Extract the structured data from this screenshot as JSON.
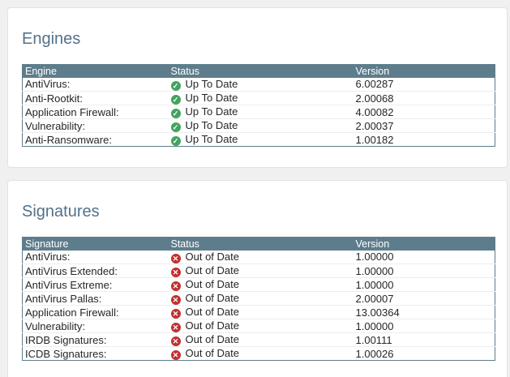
{
  "colors": {
    "page_bg": "#f0f0f1",
    "panel_bg": "#ffffff",
    "panel_border": "#e2e2e4",
    "title_text": "#53718a",
    "table_header_bg": "#5e7d8c",
    "table_header_text": "#ffffff",
    "table_border": "#5e7d8c",
    "row_divider": "#ededed",
    "body_text": "#262626",
    "status_ok": "#42a35f",
    "status_bad": "#c23030"
  },
  "engines": {
    "title": "Engines",
    "headers": [
      "Engine",
      "Status",
      "Version"
    ],
    "rows": [
      {
        "name": "AntiVirus:",
        "status": "Up To Date",
        "ok": true,
        "version": "6.00287"
      },
      {
        "name": "Anti-Rootkit:",
        "status": "Up To Date",
        "ok": true,
        "version": "2.00068"
      },
      {
        "name": "Application Firewall:",
        "status": "Up To Date",
        "ok": true,
        "version": "4.00082"
      },
      {
        "name": "Vulnerability:",
        "status": "Up To Date",
        "ok": true,
        "version": "2.00037"
      },
      {
        "name": "Anti-Ransomware:",
        "status": "Up To Date",
        "ok": true,
        "version": "1.00182"
      }
    ]
  },
  "signatures": {
    "title": "Signatures",
    "headers": [
      "Signature",
      "Status",
      "Version"
    ],
    "rows": [
      {
        "name": "AntiVirus:",
        "status": "Out of Date",
        "ok": false,
        "version": "1.00000"
      },
      {
        "name": "AntiVirus Extended:",
        "status": "Out of Date",
        "ok": false,
        "version": "1.00000"
      },
      {
        "name": "AntiVirus Extreme:",
        "status": "Out of Date",
        "ok": false,
        "version": "1.00000"
      },
      {
        "name": "AntiVirus Pallas:",
        "status": "Out of Date",
        "ok": false,
        "version": "2.00007"
      },
      {
        "name": "Application Firewall:",
        "status": "Out of Date",
        "ok": false,
        "version": "13.00364"
      },
      {
        "name": "Vulnerability:",
        "status": "Out of Date",
        "ok": false,
        "version": "1.00000"
      },
      {
        "name": "IRDB Signatures:",
        "status": "Out of Date",
        "ok": false,
        "version": "1.00111"
      },
      {
        "name": "ICDB Signatures:",
        "status": "Out of Date",
        "ok": false,
        "version": "1.00026"
      }
    ]
  }
}
